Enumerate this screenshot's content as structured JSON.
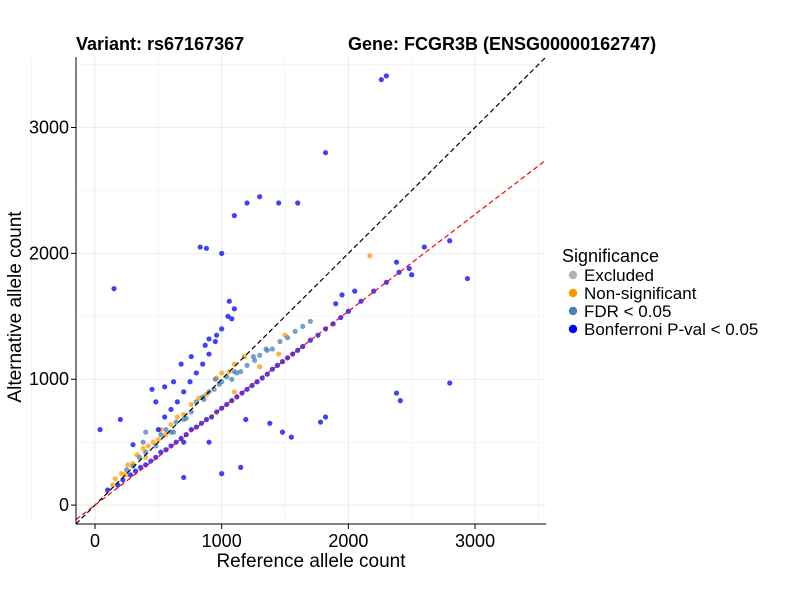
{
  "chart_data": {
    "type": "scatter",
    "title_left": "Variant: rs67167367",
    "title_right": "Gene: FCGR3B (ENSG00000162747)",
    "xlabel": "Reference allele count",
    "ylabel": "Alternative allele count",
    "xlim": [
      -150,
      3560
    ],
    "ylim": [
      -150,
      3560
    ],
    "xticks": [
      "0",
      "1000",
      "2000",
      "3000"
    ],
    "yticks": [
      "0",
      "1000",
      "2000",
      "3000"
    ],
    "grid": true,
    "legend": {
      "title": "Significance",
      "position": "right",
      "items": [
        {
          "label": "Excluded",
          "color": "#b3b3b3"
        },
        {
          "label": "Non-significant",
          "color": "#ff9900"
        },
        {
          "label": "FDR < 0.05",
          "color": "#4682b4"
        },
        {
          "label": "Bonferroni P-val < 0.05",
          "color": "#0000ff"
        }
      ]
    },
    "reference_lines": [
      {
        "type": "identity",
        "slope": 1.0,
        "intercept": 0,
        "color": "#000000",
        "style": "dashed"
      },
      {
        "type": "fit",
        "slope": 0.77,
        "intercept": 0,
        "color": "#ff0000",
        "style": "dashed"
      }
    ],
    "series": [
      {
        "name": "Non-significant",
        "color": "#ff9900",
        "points": [
          [
            160,
            210
          ],
          [
            210,
            250
          ],
          [
            260,
            320
          ],
          [
            300,
            330
          ],
          [
            330,
            400
          ],
          [
            380,
            450
          ],
          [
            420,
            470
          ],
          [
            460,
            500
          ],
          [
            500,
            520
          ],
          [
            520,
            600
          ],
          [
            560,
            560
          ],
          [
            600,
            640
          ],
          [
            650,
            700
          ],
          [
            700,
            720
          ],
          [
            760,
            800
          ],
          [
            820,
            850
          ],
          [
            880,
            880
          ],
          [
            960,
            1010
          ],
          [
            1000,
            1050
          ],
          [
            1060,
            1060
          ],
          [
            1100,
            1120
          ],
          [
            1180,
            1180
          ],
          [
            1500,
            1350
          ],
          [
            2170,
            1980
          ],
          [
            1100,
            900
          ],
          [
            1300,
            1100
          ],
          [
            1450,
            1200
          ],
          [
            140,
            160
          ],
          [
            240,
            240
          ],
          [
            400,
            380
          ]
        ]
      },
      {
        "name": "FDR < 0.05",
        "color": "#4682b4",
        "points": [
          [
            250,
            280
          ],
          [
            300,
            310
          ],
          [
            350,
            380
          ],
          [
            400,
            420
          ],
          [
            480,
            470
          ],
          [
            520,
            560
          ],
          [
            600,
            580
          ],
          [
            640,
            660
          ],
          [
            700,
            680
          ],
          [
            760,
            740
          ],
          [
            800,
            820
          ],
          [
            860,
            840
          ],
          [
            900,
            900
          ],
          [
            940,
            920
          ],
          [
            1000,
            980
          ],
          [
            1040,
            1020
          ],
          [
            1080,
            1000
          ],
          [
            1150,
            1060
          ],
          [
            1200,
            1110
          ],
          [
            1260,
            1150
          ],
          [
            1300,
            1190
          ],
          [
            1360,
            1230
          ],
          [
            1400,
            1240
          ],
          [
            1460,
            1300
          ],
          [
            1520,
            1330
          ],
          [
            1580,
            1380
          ],
          [
            1640,
            1420
          ],
          [
            1700,
            1460
          ],
          [
            400,
            580
          ],
          [
            560,
            600
          ],
          [
            380,
            500
          ],
          [
            850,
            860
          ],
          [
            950,
            1000
          ],
          [
            1100,
            1060
          ],
          [
            1250,
            1180
          ],
          [
            1350,
            1240
          ],
          [
            620,
            580
          ],
          [
            720,
            690
          ],
          [
            980,
            960
          ],
          [
            1120,
            1050
          ]
        ]
      },
      {
        "name": "Bonferroni P-val < 0.05",
        "color": "#0000ff",
        "points": [
          [
            100,
            120
          ],
          [
            180,
            160
          ],
          [
            220,
            200
          ],
          [
            280,
            240
          ],
          [
            320,
            270
          ],
          [
            360,
            300
          ],
          [
            400,
            320
          ],
          [
            440,
            350
          ],
          [
            480,
            380
          ],
          [
            520,
            420
          ],
          [
            560,
            440
          ],
          [
            600,
            470
          ],
          [
            640,
            500
          ],
          [
            680,
            530
          ],
          [
            720,
            560
          ],
          [
            760,
            600
          ],
          [
            800,
            620
          ],
          [
            840,
            650
          ],
          [
            880,
            680
          ],
          [
            920,
            700
          ],
          [
            960,
            740
          ],
          [
            1000,
            770
          ],
          [
            1040,
            800
          ],
          [
            1080,
            830
          ],
          [
            1120,
            860
          ],
          [
            1160,
            890
          ],
          [
            1200,
            920
          ],
          [
            1240,
            950
          ],
          [
            1280,
            980
          ],
          [
            1320,
            1010
          ],
          [
            1360,
            1040
          ],
          [
            1400,
            1080
          ],
          [
            1440,
            1110
          ],
          [
            1480,
            1140
          ],
          [
            1520,
            1170
          ],
          [
            1560,
            1200
          ],
          [
            1600,
            1230
          ],
          [
            1640,
            1260
          ],
          [
            1700,
            1310
          ],
          [
            1760,
            1350
          ],
          [
            1820,
            1400
          ],
          [
            1880,
            1440
          ],
          [
            1940,
            1490
          ],
          [
            2000,
            1540
          ],
          [
            2100,
            1620
          ],
          [
            2200,
            1700
          ],
          [
            2300,
            1770
          ],
          [
            2400,
            1850
          ],
          [
            2480,
            1880
          ],
          [
            2500,
            1830
          ],
          [
            500,
            600
          ],
          [
            550,
            700
          ],
          [
            600,
            760
          ],
          [
            650,
            820
          ],
          [
            700,
            900
          ],
          [
            750,
            980
          ],
          [
            800,
            1050
          ],
          [
            850,
            1120
          ],
          [
            900,
            1200
          ],
          [
            950,
            1300
          ],
          [
            1000,
            1400
          ],
          [
            1050,
            1500
          ],
          [
            1100,
            1560
          ],
          [
            870,
            1270
          ],
          [
            960,
            1350
          ],
          [
            1080,
            1480
          ],
          [
            900,
            1320
          ],
          [
            1060,
            1620
          ],
          [
            680,
            1120
          ],
          [
            760,
            1180
          ],
          [
            830,
            2050
          ],
          [
            880,
            2040
          ],
          [
            1000,
            2000
          ],
          [
            1100,
            2300
          ],
          [
            1200,
            2400
          ],
          [
            1300,
            2450
          ],
          [
            1450,
            2400
          ],
          [
            1600,
            2400
          ],
          [
            1820,
            2800
          ],
          [
            2260,
            3380
          ],
          [
            2300,
            3410
          ],
          [
            2940,
            1800
          ],
          [
            2800,
            2100
          ],
          [
            2600,
            2050
          ],
          [
            2380,
            1930
          ],
          [
            2380,
            890
          ],
          [
            2410,
            830
          ],
          [
            2800,
            970
          ],
          [
            150,
            1720
          ],
          [
            40,
            600
          ],
          [
            450,
            920
          ],
          [
            550,
            940
          ],
          [
            480,
            820
          ],
          [
            620,
            980
          ],
          [
            300,
            480
          ],
          [
            200,
            680
          ],
          [
            1550,
            540
          ],
          [
            1480,
            580
          ],
          [
            1780,
            660
          ],
          [
            1820,
            700
          ],
          [
            1190,
            680
          ],
          [
            1000,
            250
          ],
          [
            700,
            220
          ],
          [
            700,
            500
          ],
          [
            900,
            500
          ],
          [
            1900,
            1600
          ],
          [
            2050,
            1700
          ],
          [
            1950,
            1670
          ],
          [
            1380,
            650
          ],
          [
            1150,
            300
          ]
        ]
      }
    ]
  }
}
